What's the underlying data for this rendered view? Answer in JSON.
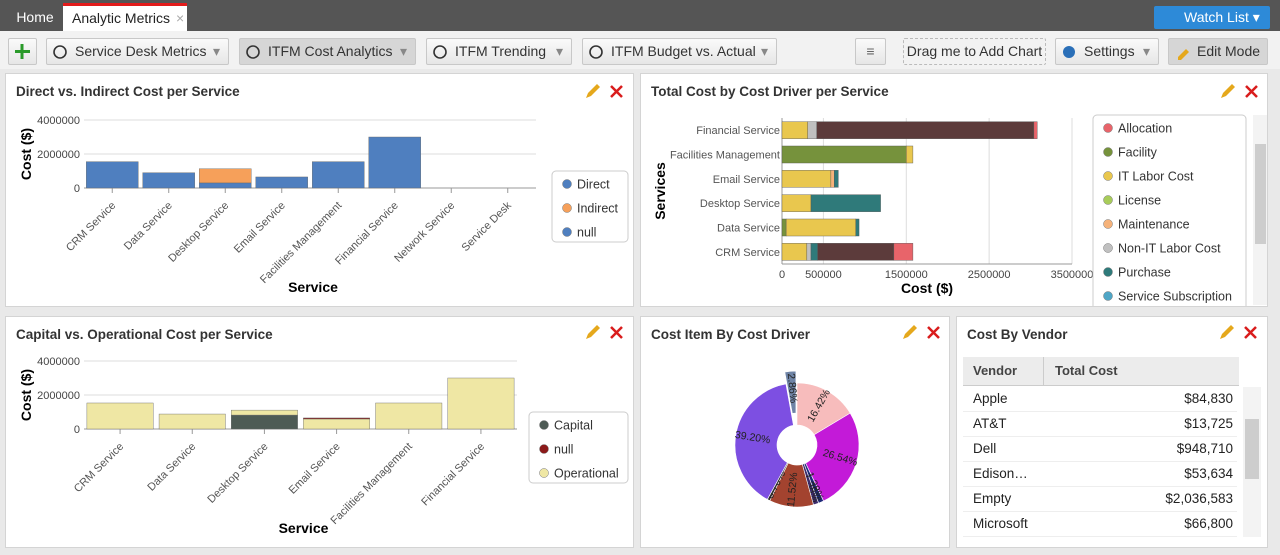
{
  "tabs": [
    "Home",
    "Analytic Metrics"
  ],
  "watch_list": "Watch List",
  "toolbar": {
    "dashboards": [
      "Service Desk Metrics",
      "ITFM Cost Analytics",
      "ITFM Trending",
      "ITFM Budget vs. Actual"
    ],
    "drag": "Drag me to Add Chart",
    "settings": "Settings",
    "edit_mode": "Edit Mode"
  },
  "chart_data": [
    {
      "type": "bar",
      "orientation": "vertical",
      "stacked": true,
      "title": "Direct vs. Indirect Cost per Service",
      "xlabel": "Service",
      "ylabel": "Cost ($)",
      "categories": [
        "CRM Service",
        "Data Service",
        "Desktop Service",
        "Email Service",
        "Facilities Management",
        "Financial Service",
        "Network Service",
        "Service Desk"
      ],
      "series": [
        {
          "name": "Direct",
          "color": "#4f7fbf",
          "values": [
            1550000,
            900000,
            300000,
            650000,
            1550000,
            3000000,
            0,
            0
          ]
        },
        {
          "name": "Indirect",
          "color": "#f6a05a",
          "values": [
            null,
            null,
            830000,
            null,
            null,
            null,
            null,
            null
          ]
        },
        {
          "name": "null",
          "color": "#4f7fbf",
          "values": [
            null,
            null,
            null,
            null,
            null,
            null,
            null,
            null
          ]
        }
      ],
      "ylim": [
        0,
        4000000
      ],
      "yticks": [
        0,
        2000000,
        4000000
      ],
      "grid": true,
      "legend": "right"
    },
    {
      "type": "bar",
      "orientation": "horizontal",
      "stacked": true,
      "title": "Total Cost by Cost Driver per Service",
      "xlabel": "Cost ($)",
      "ylabel": "Services",
      "categories": [
        "Financial Service",
        "Facilities Management",
        "Email Service",
        "Desktop Service",
        "Data Service",
        "CRM Service"
      ],
      "series": [
        {
          "name": "Facility",
          "color": "#76923c",
          "values": [
            null,
            1500000,
            null,
            null,
            50000,
            null
          ]
        },
        {
          "name": "IT Labor Cost",
          "color": "#e9c74e",
          "values": [
            310000,
            80000,
            590000,
            350000,
            840000,
            300000
          ]
        },
        {
          "name": "Non-IT Labor Cost",
          "color": "#c0c0c0",
          "values": [
            110000,
            null,
            null,
            null,
            null,
            50000
          ]
        },
        {
          "name": "Maintenance",
          "color": "#f5b27a",
          "values": [
            null,
            null,
            40000,
            null,
            null,
            null
          ]
        },
        {
          "name": "Purchase",
          "color": "#2f7a7a",
          "values": [
            null,
            null,
            50000,
            840000,
            40000,
            80000
          ]
        },
        {
          "name": null,
          "color": "#5c3b3b",
          "values": [
            2620000,
            null,
            null,
            null,
            null,
            920000
          ]
        },
        {
          "name": "Allocation",
          "color": "#e8646a",
          "values": [
            40000,
            null,
            null,
            null,
            null,
            230000
          ]
        },
        {
          "name": "License",
          "color": "#a8cc5a",
          "values": [
            null,
            null,
            null,
            null,
            null,
            null
          ]
        },
        {
          "name": "Service Subscription",
          "color": "#4fa6c6",
          "values": [
            null,
            null,
            null,
            null,
            null,
            null
          ]
        }
      ],
      "xlim": [
        0,
        3500000
      ],
      "xticks": [
        0,
        500000,
        1500000,
        2500000,
        3500000
      ],
      "grid": true,
      "legend": "right"
    },
    {
      "type": "bar",
      "orientation": "vertical",
      "stacked": true,
      "title": "Capital vs. Operational Cost per Service",
      "xlabel": "Service",
      "ylabel": "Cost ($)",
      "categories": [
        "CRM Service",
        "Data Service",
        "Desktop Service",
        "Email Service",
        "Facilities Management",
        "Financial Service"
      ],
      "series": [
        {
          "name": "Capital",
          "color": "#4e5b55",
          "values": [
            null,
            null,
            820000,
            null,
            null,
            null
          ]
        },
        {
          "name": "Operational",
          "color": "#efe7a4",
          "values": [
            1530000,
            880000,
            290000,
            590000,
            1530000,
            3000000
          ]
        },
        {
          "name": "null",
          "color": "#8b1a1a",
          "values": [
            null,
            null,
            null,
            60000,
            null,
            null
          ]
        }
      ],
      "ylim": [
        0,
        4000000
      ],
      "yticks": [
        0,
        2000000,
        4000000
      ],
      "grid": true,
      "legend": "right"
    },
    {
      "type": "donut",
      "title": "Cost Item By Cost Driver",
      "values": [
        16.42,
        26.54,
        1.38,
        1.38,
        11.52,
        0.7,
        39.2,
        2.86
      ],
      "value_labels": [
        "16.42%",
        "26.54%",
        "1.38%",
        "1.38%",
        "11.52%",
        "0.70%",
        "39.20%",
        "2.86%"
      ],
      "colors": [
        "#f7bcbc",
        "#c31ad8",
        "#1e2a78",
        "#3b2b6b",
        "#a3432f",
        "#2d2d2d",
        "#7d4fe2",
        "#6f84a6"
      ]
    }
  ],
  "vendor_table": {
    "title": "Cost By Vendor",
    "columns": [
      "Vendor",
      "Total Cost"
    ],
    "rows": [
      [
        "Apple",
        "$84,830"
      ],
      [
        "AT&T",
        "$13,725"
      ],
      [
        "Dell",
        "$948,710"
      ],
      [
        "Edison…",
        "$53,634"
      ],
      [
        "Empty",
        "$2,036,583"
      ],
      [
        "Microsoft",
        "$66,800"
      ]
    ]
  }
}
